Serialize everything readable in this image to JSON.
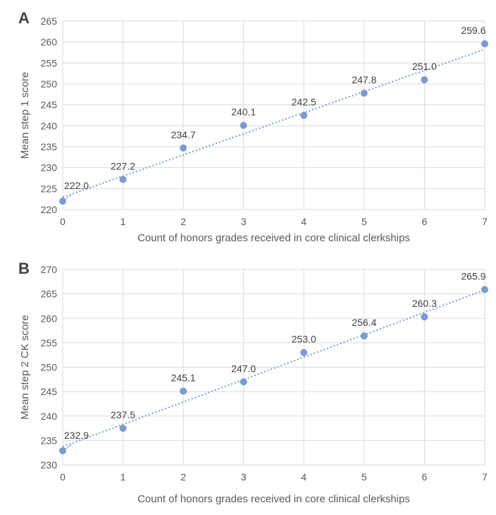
{
  "chart_data": [
    {
      "type": "scatter",
      "panel_label": "A",
      "xlabel": "Count of honors grades received in core clinical clerkships",
      "ylabel": "Mean step 1 score",
      "x": [
        0,
        1,
        2,
        3,
        4,
        5,
        6,
        7
      ],
      "y": [
        222.0,
        227.2,
        234.7,
        240.1,
        242.5,
        247.8,
        251.0,
        259.6
      ],
      "data_labels": [
        "222.0",
        "227.2",
        "234.7",
        "240.1",
        "242.5",
        "247.8",
        "251.0",
        "259.6"
      ],
      "xlim": [
        0,
        7
      ],
      "ylim": [
        220,
        265
      ],
      "ystep": 5,
      "trendline": "linear dotted",
      "grid": true,
      "color": "#7b9bd1"
    },
    {
      "type": "scatter",
      "panel_label": "B",
      "xlabel": "Count of honors grades received in core clinical clerkships",
      "ylabel": "Mean step 2 CK score",
      "x": [
        0,
        1,
        2,
        3,
        4,
        5,
        6,
        7
      ],
      "y": [
        232.9,
        237.5,
        245.1,
        247.0,
        253.0,
        256.4,
        260.3,
        265.9
      ],
      "data_labels": [
        "232.9",
        "237.5",
        "245.1",
        "247.0",
        "253.0",
        "256.4",
        "260.3",
        "265.9"
      ],
      "xlim": [
        0,
        7
      ],
      "ylim": [
        230,
        270
      ],
      "ystep": 5,
      "trendline": "linear dotted",
      "grid": true,
      "color": "#7b9bd1"
    }
  ]
}
